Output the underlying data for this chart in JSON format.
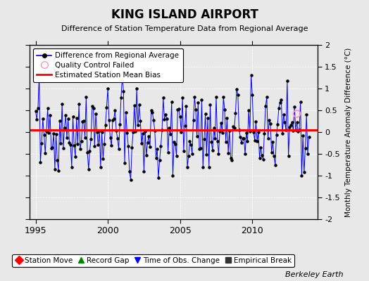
{
  "title": "KING ISLAND AIRPORT",
  "subtitle": "Difference of Station Temperature Data from Regional Average",
  "ylabel": "Monthly Temperature Anomaly Difference (°C)",
  "xlim": [
    1994.58,
    2014.5
  ],
  "ylim": [
    -2,
    2
  ],
  "yticks": [
    -2,
    -1.5,
    -1,
    -0.5,
    0,
    0.5,
    1,
    1.5,
    2
  ],
  "xticks": [
    1995,
    2000,
    2005,
    2010
  ],
  "bias_value": 0.05,
  "fig_bg_color": "#e8e8e8",
  "plot_bg_color": "#e8e8e8",
  "line_color": "#0000ff",
  "marker_color": "#000000",
  "bias_color": "#ff0000",
  "berkeley_earth_text": "Berkeley Earth",
  "seed": 42,
  "n_points": 228,
  "start_year": 1995,
  "qc_point_year": 2013.08,
  "qc_point_value": 0.42
}
